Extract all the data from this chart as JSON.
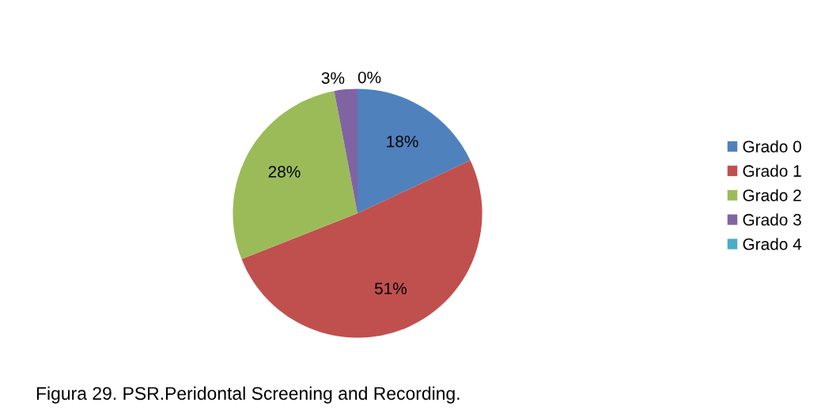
{
  "chart_data": {
    "type": "pie",
    "categories": [
      "Grado 0",
      "Grado 1",
      "Grado 2",
      "Grado 3",
      "Grado 4"
    ],
    "values": [
      18,
      51,
      28,
      3,
      0
    ],
    "colors": [
      "#4f81bd",
      "#c0504d",
      "#9bbb59",
      "#8064a2",
      "#4bacc6"
    ],
    "value_labels": [
      "18%",
      "51%",
      "28%",
      "3%",
      "0%"
    ],
    "legend": "right",
    "annotations": [
      "Figura 29. PSR.Peridontal Screening and Recording."
    ]
  }
}
